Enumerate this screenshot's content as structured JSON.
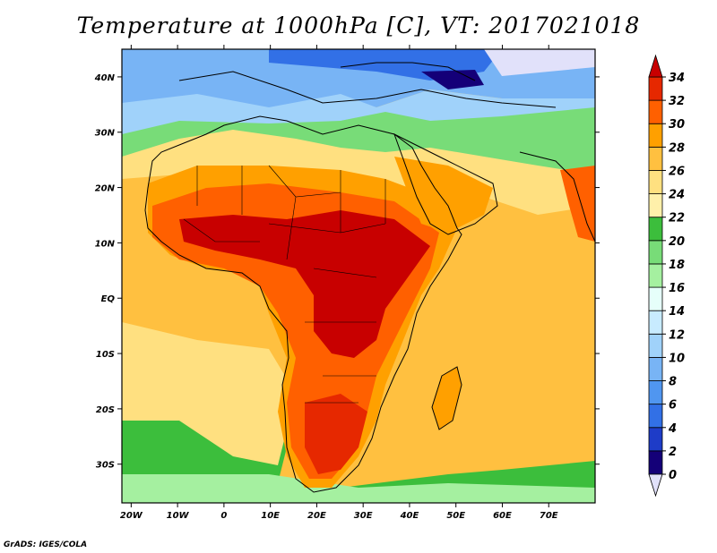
{
  "title": "Temperature at 1000hPa [C], VT: 2017021018",
  "credit": "GrADS: IGES/COLA",
  "map": {
    "lon_range": [
      -22,
      80
    ],
    "lat_range": [
      -37,
      45
    ],
    "lat_labels": [
      "40N",
      "30N",
      "20N",
      "10N",
      "EQ",
      "10S",
      "20S",
      "30S"
    ],
    "lon_labels": [
      "20W",
      "10W",
      "0",
      "10E",
      "20E",
      "30E",
      "40E",
      "50E",
      "60E",
      "70E"
    ]
  },
  "colorbar": {
    "levels": [
      "0",
      "2",
      "4",
      "6",
      "8",
      "10",
      "12",
      "14",
      "16",
      "18",
      "20",
      "22",
      "24",
      "26",
      "28",
      "30",
      "32",
      "34"
    ],
    "colors": [
      "#140078",
      "#1e3cc8",
      "#3270e6",
      "#5096f0",
      "#78b4f5",
      "#a0d2fa",
      "#c8ebff",
      "#e6fffa",
      "#a5f0a0",
      "#78dc78",
      "#3cbe3c",
      "#fff0aa",
      "#ffe080",
      "#ffc040",
      "#ffa000",
      "#ff6000",
      "#e62800",
      "#c80000"
    ],
    "under_color": "#e1e1fa",
    "over_color": "#c80000"
  }
}
